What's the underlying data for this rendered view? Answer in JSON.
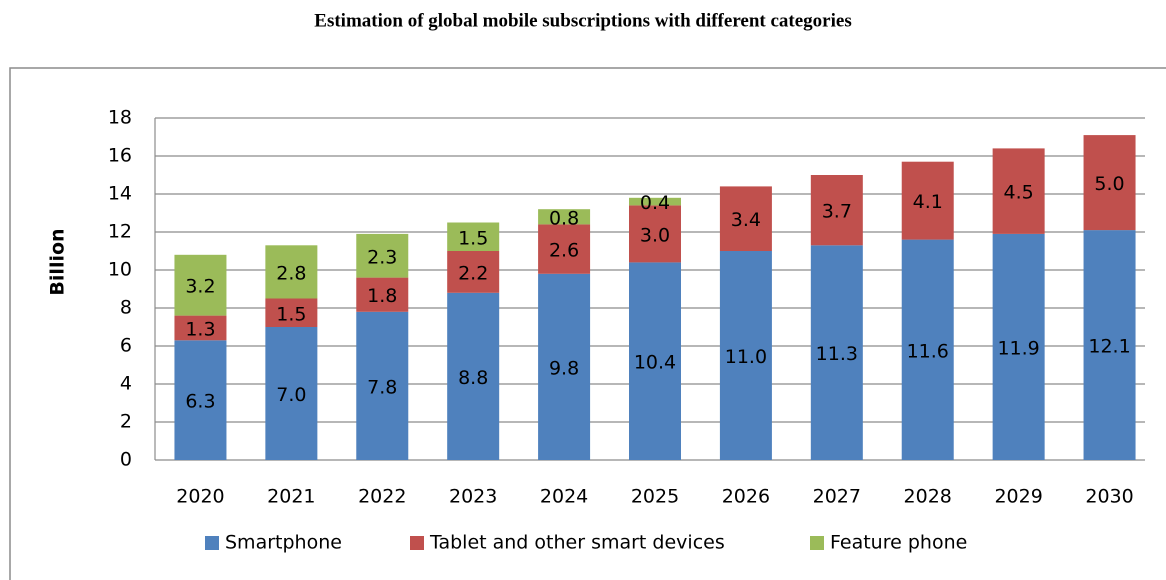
{
  "chart_data": {
    "type": "stacked_bar",
    "title": "Estimation of global mobile subscriptions with different categories",
    "y_label": "Billion",
    "categories": [
      "2020",
      "2021",
      "2022",
      "2023",
      "2024",
      "2025",
      "2026",
      "2027",
      "2028",
      "2029",
      "2030"
    ],
    "series": [
      {
        "name": "Smartphone",
        "color": "#4f81bd",
        "values": [
          6.3,
          7.0,
          7.8,
          8.8,
          9.8,
          10.4,
          11.0,
          11.3,
          11.6,
          11.9,
          12.1
        ],
        "value_labels": [
          "6.3",
          "7.0",
          "7.8",
          "8.8",
          "9.8",
          "10.4",
          "11.0",
          "11.3",
          "11.6",
          "11.9",
          "12.1"
        ]
      },
      {
        "name": "Tablet and other smart devices",
        "color": "#c0504d",
        "values": [
          1.3,
          1.5,
          1.8,
          2.2,
          2.6,
          3.0,
          3.4,
          3.7,
          4.1,
          4.5,
          5.0
        ],
        "value_labels": [
          "1.3",
          "1.5",
          "1.8",
          "2.2",
          "2.6",
          "3.0",
          "3.4",
          "3.7",
          "4.1",
          "4.5",
          "5.0"
        ]
      },
      {
        "name": "Feature phone",
        "color": "#9bbb59",
        "values": [
          3.2,
          2.8,
          2.3,
          1.5,
          0.8,
          0.4,
          null,
          null,
          null,
          null,
          null
        ],
        "value_labels": [
          "3.2",
          "2.8",
          "2.3",
          "1.5",
          "0.8",
          "0.4",
          null,
          null,
          null,
          null,
          null
        ]
      }
    ],
    "ylim": [
      0,
      18
    ],
    "yticks": [
      0,
      2,
      4,
      6,
      8,
      10,
      12,
      14,
      16,
      18
    ],
    "grid": true,
    "legend": "bottom"
  }
}
